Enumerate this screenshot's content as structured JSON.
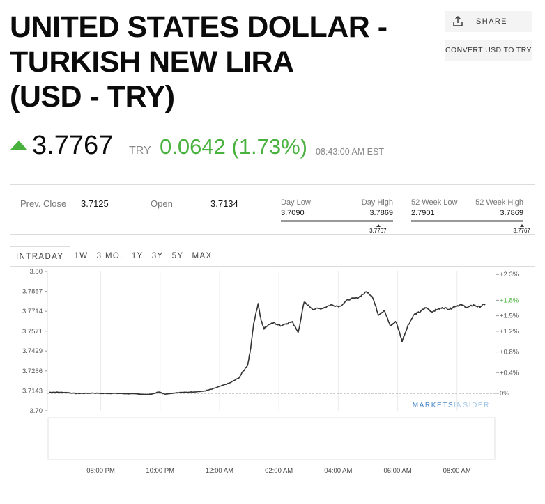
{
  "page": {
    "title_lines": [
      "UNITED STATES DOLLAR -",
      "TURKISH NEW LIRA",
      "(USD - TRY)"
    ],
    "share_label": "SHARE",
    "convert_label": "CONVERT USD TO TRY"
  },
  "quote": {
    "price": "3.7767",
    "currency": "TRY",
    "change": "0.0642 (1.73%)",
    "time": "08:43:00 AM EST",
    "direction": "up",
    "accent_color": "#49b23f"
  },
  "stats": {
    "prev_close_label": "Prev. Close",
    "prev_close": "3.7125",
    "open_label": "Open",
    "open": "3.7134",
    "day_low_label": "Day Low",
    "day_low": "3.7090",
    "day_high_label": "Day High",
    "day_high": "3.7869",
    "day_marker": "3.7767",
    "week52_low_label": "52 Week Low",
    "week52_low": "2.7901",
    "week52_high_label": "52 Week High",
    "week52_high": "3.7869",
    "week52_marker": "3.7767",
    "day_position": 0.87,
    "week52_position": 0.99
  },
  "tabs": [
    "INTRADAY",
    "1W",
    "3 MO.",
    "1Y",
    "3Y",
    "5Y",
    "MAX"
  ],
  "active_tab": "INTRADAY",
  "chart_data": {
    "type": "line",
    "brand_left": "MARKETS",
    "brand_right": "INSIDER",
    "y_ticks_left": [
      "3.80",
      "3.7857",
      "3.7714",
      "3.7571",
      "3.7429",
      "3.7286",
      "3.7143",
      "3.70"
    ],
    "y_ticks_right": [
      "+2.3%",
      "+1.8%",
      "+1.5%",
      "+1.2%",
      "+0.8%",
      "+0.4%",
      "0%"
    ],
    "x_ticks": [
      "08:00 PM",
      "10:00 PM",
      "12:00 AM",
      "02:00 AM",
      "04:00 AM",
      "06:00 AM",
      "08:00 AM"
    ],
    "ylim": [
      3.7,
      3.8
    ],
    "prev_close": 3.7125,
    "series": [
      {
        "x_hours": [
          0,
          0.3,
          0.6,
          0.9,
          1.2,
          1.5,
          1.8,
          2.1,
          2.4,
          2.7,
          3.0,
          3.3,
          3.5,
          3.7,
          3.8,
          3.9,
          4.1,
          4.3,
          4.6,
          4.9,
          5.2,
          5.5,
          5.8,
          6.1,
          6.4,
          6.7,
          6.8,
          6.9,
          7.05,
          7.15,
          7.25,
          7.4,
          7.6,
          7.8,
          8.0,
          8.2,
          8.4,
          8.6,
          8.9,
          9.2,
          9.5,
          9.8,
          10.1,
          10.4,
          10.7,
          10.9,
          11.1,
          11.3,
          11.5,
          11.7,
          11.9,
          12.1,
          12.3,
          12.5,
          12.7,
          12.9,
          13.1,
          13.3,
          13.5,
          13.7,
          13.9,
          14.1,
          14.3,
          14.5,
          14.7
        ],
        "values": [
          3.7133,
          3.7133,
          3.7131,
          3.7124,
          3.7125,
          3.7127,
          3.7124,
          3.7125,
          3.7124,
          3.7122,
          3.7121,
          3.7116,
          3.712,
          3.7136,
          3.7128,
          3.712,
          3.7124,
          3.713,
          3.7132,
          3.7136,
          3.714,
          3.7155,
          3.7178,
          3.72,
          3.7235,
          3.733,
          3.745,
          3.7622,
          3.777,
          3.765,
          3.759,
          3.7618,
          3.763,
          3.761,
          3.7622,
          3.764,
          3.756,
          3.778,
          3.773,
          3.7735,
          3.776,
          3.775,
          3.78,
          3.781,
          3.7853,
          3.7822,
          3.769,
          3.772,
          3.761,
          3.764,
          3.75,
          3.7613,
          3.769,
          3.771,
          3.7741,
          3.7711,
          3.773,
          3.774,
          3.773,
          3.7753,
          3.776,
          3.7741,
          3.776,
          3.7745,
          3.7767
        ]
      }
    ]
  }
}
